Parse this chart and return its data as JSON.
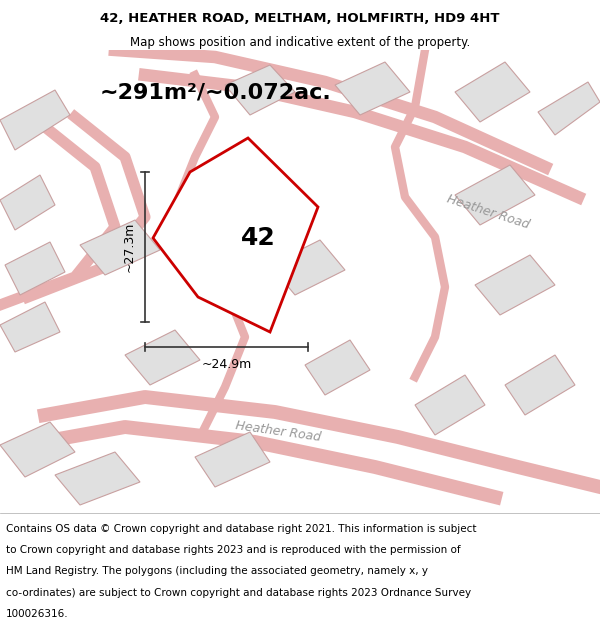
{
  "title_line1": "42, HEATHER ROAD, MELTHAM, HOLMFIRTH, HD9 4HT",
  "title_line2": "Map shows position and indicative extent of the property.",
  "area_text": "~291m²/~0.072ac.",
  "number_label": "42",
  "dim_vertical": "~27.3m",
  "dim_horizontal": "~24.9m",
  "road_label_main": "Heather Road",
  "road_label_diag": "Heather Road",
  "footer_lines": [
    "Contains OS data © Crown copyright and database right 2021. This information is subject",
    "to Crown copyright and database rights 2023 and is reproduced with the permission of",
    "HM Land Registry. The polygons (including the associated geometry, namely x, y",
    "co-ordinates) are subject to Crown copyright and database rights 2023 Ordnance Survey",
    "100026316."
  ],
  "map_bg": "#ffffff",
  "plot_outline_color": "#cc0000",
  "neighbor_fill": "#e0e0e0",
  "neighbor_stroke": "#c8a0a0",
  "road_line_color": "#e8b0b0",
  "dim_line_color": "#333333",
  "title_fontsize": 9.5,
  "subtitle_fontsize": 8.5,
  "area_fontsize": 16,
  "label_fontsize": 18,
  "footer_fontsize": 7.5,
  "road_fontsize": 9,
  "dim_fontsize": 9
}
